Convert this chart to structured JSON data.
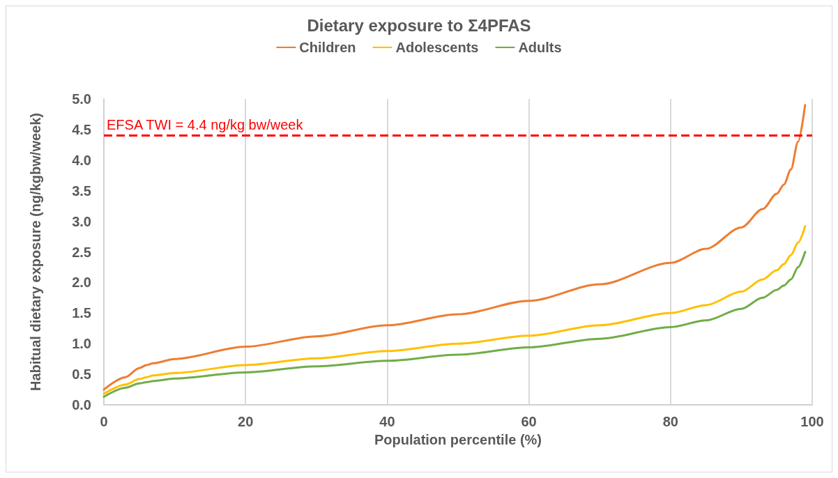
{
  "chart_data": {
    "type": "line",
    "title": "Dietary exposure to Σ4PFAS",
    "xlabel": "Population percentile (%)",
    "ylabel": "Habitual dietary exposure (ng/kgbw/week)",
    "x": [
      0,
      3,
      5,
      6,
      7,
      10,
      20,
      30,
      40,
      50,
      60,
      70,
      80,
      85,
      90,
      93,
      95,
      96,
      97,
      98,
      99
    ],
    "series": [
      {
        "name": "Children",
        "color": "#ed7d31",
        "values": [
          0.25,
          0.45,
          0.6,
          0.65,
          0.68,
          0.75,
          0.95,
          1.12,
          1.3,
          1.48,
          1.7,
          1.97,
          2.32,
          2.55,
          2.9,
          3.2,
          3.45,
          3.6,
          3.85,
          4.3,
          4.9
        ]
      },
      {
        "name": "Adolescents",
        "color": "#ffc000",
        "values": [
          0.18,
          0.33,
          0.42,
          0.45,
          0.48,
          0.52,
          0.65,
          0.76,
          0.88,
          1.0,
          1.13,
          1.3,
          1.5,
          1.63,
          1.85,
          2.05,
          2.2,
          2.3,
          2.45,
          2.65,
          2.92
        ]
      },
      {
        "name": "Adults",
        "color": "#70ad47",
        "values": [
          0.13,
          0.28,
          0.35,
          0.37,
          0.39,
          0.43,
          0.53,
          0.63,
          0.72,
          0.82,
          0.94,
          1.08,
          1.27,
          1.38,
          1.57,
          1.75,
          1.88,
          1.95,
          2.05,
          2.25,
          2.5
        ]
      }
    ],
    "xlim": [
      0,
      100
    ],
    "xticks": [
      0,
      20,
      40,
      60,
      80,
      100
    ],
    "ylim": [
      0,
      5
    ],
    "yticks": [
      {
        "value": 0,
        "label": "0.0"
      },
      0.5,
      {
        "value": 1,
        "label": "1.0"
      },
      1.5,
      {
        "value": 2,
        "label": "2.0"
      },
      2.5,
      {
        "value": 3,
        "label": "3.0"
      },
      3.5,
      {
        "value": 4,
        "label": "4.0"
      },
      4.5,
      {
        "value": 5,
        "label": "5.0"
      }
    ],
    "ref_lines": [
      {
        "axis": "y",
        "value": 4.4,
        "label": "EFSA TWI = 4.4 ng/kg bw/week",
        "color": "#ff0000",
        "line_style": "dashed"
      }
    ],
    "grid": "x",
    "legend": "top",
    "marker": "none",
    "line_style": "solid"
  }
}
